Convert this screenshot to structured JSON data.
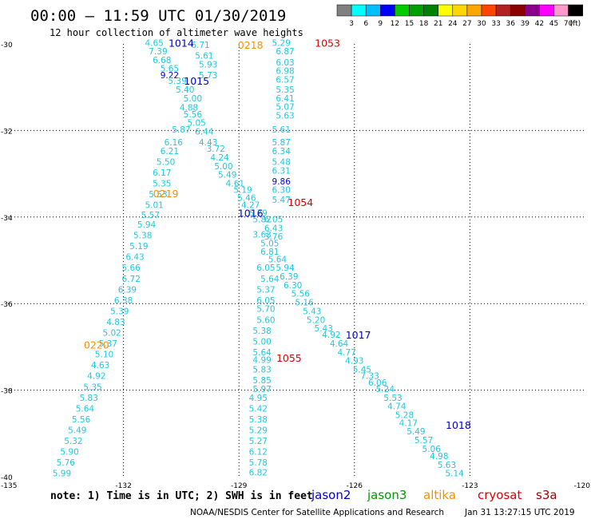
{
  "header": {
    "title": "00:00 – 11:59 UTC 01/30/2019",
    "subtitle": "12 hour collection of altimeter wave heights"
  },
  "legend": {
    "ticks": [
      "3",
      "6",
      "9",
      "12",
      "15",
      "18",
      "21",
      "24",
      "27",
      "30",
      "33",
      "36",
      "39",
      "42",
      "45",
      "70",
      "(ft)"
    ],
    "colors": [
      "#808080",
      "#00ffff",
      "#00bfff",
      "#0000ff",
      "#00cc00",
      "#00a000",
      "#008000",
      "#ffff00",
      "#ffd700",
      "#ffa500",
      "#ff4500",
      "#b22222",
      "#8b0000",
      "#8b008b",
      "#ff00ff",
      "#ff99cc",
      "#000000"
    ]
  },
  "axes": {
    "lat_labels": [
      "-30",
      "-32",
      "-34",
      "-36",
      "-38",
      "-40"
    ],
    "lon_labels": [
      "-135",
      "-132",
      "-129",
      "-126",
      "-123",
      "-120"
    ]
  },
  "footer": {
    "note": "note: 1) Time is in UTC; 2) SWH is in feet",
    "credit": "NOAA/NESDIS Center for Satellite Applications and Research",
    "generated": "Jan 31 13:27:15 UTC 2019"
  },
  "satellites": [
    {
      "name": "jason2",
      "color": "#0000cc"
    },
    {
      "name": "jason3",
      "color": "#009900"
    },
    {
      "name": "altika",
      "color": "#ff8c00"
    },
    {
      "name": "cryosat",
      "color": "#dd0000"
    },
    {
      "name": "s3a",
      "color": "#990000"
    }
  ],
  "pass_labels": [
    {
      "text": "1014",
      "lon": -130.5,
      "lat": -29.97,
      "color": "#0000cc"
    },
    {
      "text": "0218",
      "lon": -128.7,
      "lat": -30.02,
      "color": "#ff8c00"
    },
    {
      "text": "1053",
      "lon": -126.7,
      "lat": -29.97,
      "color": "#dd0000"
    },
    {
      "text": "1015",
      "lon": -130.1,
      "lat": -30.85,
      "color": "#0000cc"
    },
    {
      "text": "0219",
      "lon": -130.9,
      "lat": -33.45,
      "color": "#ff8c00"
    },
    {
      "text": "1054",
      "lon": -127.4,
      "lat": -33.65,
      "color": "#dd0000"
    },
    {
      "text": "1016",
      "lon": -128.7,
      "lat": -33.9,
      "color": "#0000cc"
    },
    {
      "text": "1017",
      "lon": -125.9,
      "lat": -36.72,
      "color": "#0000cc"
    },
    {
      "text": "0220",
      "lon": -132.7,
      "lat": -36.95,
      "color": "#ff8c00"
    },
    {
      "text": "1055",
      "lon": -127.7,
      "lat": -37.25,
      "color": "#dd0000"
    },
    {
      "text": "1018",
      "lon": -123.3,
      "lat": -38.8,
      "color": "#0000cc"
    }
  ],
  "swh_readings": [
    {
      "v": "4.65",
      "lon": -131.2,
      "lat": -29.97
    },
    {
      "v": "6.71",
      "lon": -130.0,
      "lat": -30.02
    },
    {
      "v": "5.29",
      "lon": -127.9,
      "lat": -29.97
    },
    {
      "v": "7.39",
      "lon": -131.1,
      "lat": -30.17
    },
    {
      "v": "5.61",
      "lon": -129.9,
      "lat": -30.27
    },
    {
      "v": "6.87",
      "lon": -127.8,
      "lat": -30.17
    },
    {
      "v": "6.68",
      "lon": -131.0,
      "lat": -30.37
    },
    {
      "v": "5.93",
      "lon": -129.8,
      "lat": -30.47
    },
    {
      "v": "6.03",
      "lon": -127.8,
      "lat": -30.42
    },
    {
      "v": "5.65",
      "lon": -130.8,
      "lat": -30.56
    },
    {
      "v": "9.22",
      "lon": -130.8,
      "lat": -30.72
    },
    {
      "v": "5.73",
      "lon": -129.8,
      "lat": -30.72
    },
    {
      "v": "6.98",
      "lon": -127.8,
      "lat": -30.62
    },
    {
      "v": "5.39",
      "lon": -130.6,
      "lat": -30.85
    },
    {
      "v": "6.57",
      "lon": -127.8,
      "lat": -30.82
    },
    {
      "v": "5.40",
      "lon": -130.4,
      "lat": -31.05
    },
    {
      "v": "5.35",
      "lon": -127.8,
      "lat": -31.05
    },
    {
      "v": "5.00",
      "lon": -130.2,
      "lat": -31.25
    },
    {
      "v": "6.41",
      "lon": -127.8,
      "lat": -31.25
    },
    {
      "v": "4.88",
      "lon": -130.3,
      "lat": -31.47
    },
    {
      "v": "5.07",
      "lon": -127.8,
      "lat": -31.45
    },
    {
      "v": "5.56",
      "lon": -130.2,
      "lat": -31.62
    },
    {
      "v": "5.63",
      "lon": -127.8,
      "lat": -31.65
    },
    {
      "v": "5.05",
      "lon": -130.1,
      "lat": -31.82
    },
    {
      "v": "5.87",
      "lon": -130.5,
      "lat": -31.97
    },
    {
      "v": "6.44",
      "lon": -129.9,
      "lat": -32.02
    },
    {
      "v": "5.61",
      "lon": -127.9,
      "lat": -31.97
    },
    {
      "v": "6.16",
      "lon": -130.7,
      "lat": -32.27
    },
    {
      "v": "4.43",
      "lon": -129.8,
      "lat": -32.27
    },
    {
      "v": "5.87",
      "lon": -127.9,
      "lat": -32.27
    },
    {
      "v": "6.21",
      "lon": -130.8,
      "lat": -32.47
    },
    {
      "v": "3.72",
      "lon": -129.6,
      "lat": -32.42
    },
    {
      "v": "6.34",
      "lon": -127.9,
      "lat": -32.47
    },
    {
      "v": "5.50",
      "lon": -130.9,
      "lat": -32.72
    },
    {
      "v": "4.24",
      "lon": -129.5,
      "lat": -32.62
    },
    {
      "v": "5.48",
      "lon": -127.9,
      "lat": -32.72
    },
    {
      "v": "5.00",
      "lon": -129.4,
      "lat": -32.82
    },
    {
      "v": "6.17",
      "lon": -131.0,
      "lat": -32.97
    },
    {
      "v": "5.49",
      "lon": -129.3,
      "lat": -33.02
    },
    {
      "v": "6.31",
      "lon": -127.9,
      "lat": -32.92
    },
    {
      "v": "5.35",
      "lon": -131.0,
      "lat": -33.22
    },
    {
      "v": "4.61",
      "lon": -129.1,
      "lat": -33.22
    },
    {
      "v": "9.86",
      "lon": -127.9,
      "lat": -33.17
    },
    {
      "v": "5.19",
      "lon": -128.9,
      "lat": -33.37
    },
    {
      "v": "6.30",
      "lon": -127.9,
      "lat": -33.37
    },
    {
      "v": "5.53",
      "lon": -131.1,
      "lat": -33.47
    },
    {
      "v": "5.46",
      "lon": -128.8,
      "lat": -33.55
    },
    {
      "v": "5.47",
      "lon": -127.9,
      "lat": -33.6
    },
    {
      "v": "5.01",
      "lon": -131.2,
      "lat": -33.72
    },
    {
      "v": "4.27",
      "lon": -128.7,
      "lat": -33.72
    },
    {
      "v": "5.57",
      "lon": -131.3,
      "lat": -33.95
    },
    {
      "v": "5.79",
      "lon": -128.5,
      "lat": -33.9
    },
    {
      "v": "5.82",
      "lon": -128.4,
      "lat": -34.05
    },
    {
      "v": "6.05",
      "lon": -128.1,
      "lat": -34.05
    },
    {
      "v": "5.94",
      "lon": -131.4,
      "lat": -34.17
    },
    {
      "v": "6.43",
      "lon": -128.1,
      "lat": -34.25
    },
    {
      "v": "3.63",
      "lon": -128.4,
      "lat": -34.4
    },
    {
      "v": "3.76",
      "lon": -128.1,
      "lat": -34.45
    },
    {
      "v": "5.38",
      "lon": -131.5,
      "lat": -34.42
    },
    {
      "v": "5.05",
      "lon": -128.2,
      "lat": -34.6
    },
    {
      "v": "5.19",
      "lon": -131.6,
      "lat": -34.67
    },
    {
      "v": "6.81",
      "lon": -128.2,
      "lat": -34.8
    },
    {
      "v": "6.43",
      "lon": -131.7,
      "lat": -34.92
    },
    {
      "v": "5.64",
      "lon": -128.0,
      "lat": -34.97
    },
    {
      "v": "5.66",
      "lon": -131.8,
      "lat": -35.17
    },
    {
      "v": "6.05",
      "lon": -128.3,
      "lat": -35.17
    },
    {
      "v": "5.94",
      "lon": -127.8,
      "lat": -35.17
    },
    {
      "v": "6.72",
      "lon": -131.8,
      "lat": -35.42
    },
    {
      "v": "5.64",
      "lon": -128.2,
      "lat": -35.42
    },
    {
      "v": "6.39",
      "lon": -127.7,
      "lat": -35.37
    },
    {
      "v": "6.39",
      "lon": -131.9,
      "lat": -35.67
    },
    {
      "v": "5.37",
      "lon": -128.3,
      "lat": -35.67
    },
    {
      "v": "6.30",
      "lon": -127.6,
      "lat": -35.57
    },
    {
      "v": "5.56",
      "lon": -127.4,
      "lat": -35.77
    },
    {
      "v": "6.38",
      "lon": -132.0,
      "lat": -35.92
    },
    {
      "v": "6.05",
      "lon": -128.3,
      "lat": -35.92
    },
    {
      "v": "5.16",
      "lon": -127.3,
      "lat": -35.97
    },
    {
      "v": "5.39",
      "lon": -132.1,
      "lat": -36.17
    },
    {
      "v": "5.70",
      "lon": -128.3,
      "lat": -36.12
    },
    {
      "v": "5.43",
      "lon": -127.1,
      "lat": -36.17
    },
    {
      "v": "4.83",
      "lon": -132.2,
      "lat": -36.42
    },
    {
      "v": "5.60",
      "lon": -128.3,
      "lat": -36.37
    },
    {
      "v": "5.20",
      "lon": -127.0,
      "lat": -36.37
    },
    {
      "v": "5.02",
      "lon": -132.3,
      "lat": -36.67
    },
    {
      "v": "5.38",
      "lon": -128.4,
      "lat": -36.62
    },
    {
      "v": "5.43",
      "lon": -126.8,
      "lat": -36.57
    },
    {
      "v": "4.92",
      "lon": -126.6,
      "lat": -36.72
    },
    {
      "v": "5.37",
      "lon": -132.4,
      "lat": -36.92
    },
    {
      "v": "5.00",
      "lon": -128.4,
      "lat": -36.87
    },
    {
      "v": "4.64",
      "lon": -126.4,
      "lat": -36.92
    },
    {
      "v": "5.10",
      "lon": -132.5,
      "lat": -37.17
    },
    {
      "v": "5.64",
      "lon": -128.4,
      "lat": -37.12
    },
    {
      "v": "4.77",
      "lon": -126.2,
      "lat": -37.12
    },
    {
      "v": "4.99",
      "lon": -128.4,
      "lat": -37.3
    },
    {
      "v": "4.93",
      "lon": -126.0,
      "lat": -37.32
    },
    {
      "v": "4.63",
      "lon": -132.6,
      "lat": -37.42
    },
    {
      "v": "5.83",
      "lon": -128.4,
      "lat": -37.52
    },
    {
      "v": "5.45",
      "lon": -125.8,
      "lat": -37.52
    },
    {
      "v": "4.92",
      "lon": -132.7,
      "lat": -37.67
    },
    {
      "v": "7.33",
      "lon": -125.6,
      "lat": -37.67
    },
    {
      "v": "5.85",
      "lon": -128.4,
      "lat": -37.77
    },
    {
      "v": "6.06",
      "lon": -125.4,
      "lat": -37.82
    },
    {
      "v": "5.35",
      "lon": -132.8,
      "lat": -37.92
    },
    {
      "v": "5.97",
      "lon": -128.4,
      "lat": -37.97
    },
    {
      "v": "5.24",
      "lon": -125.2,
      "lat": -37.97
    },
    {
      "v": "5.83",
      "lon": -132.9,
      "lat": -38.17
    },
    {
      "v": "4.95",
      "lon": -128.5,
      "lat": -38.17
    },
    {
      "v": "5.53",
      "lon": -125.0,
      "lat": -38.17
    },
    {
      "v": "4.74",
      "lon": -124.9,
      "lat": -38.37
    },
    {
      "v": "5.64",
      "lon": -133.0,
      "lat": -38.42
    },
    {
      "v": "5.42",
      "lon": -128.5,
      "lat": -38.42
    },
    {
      "v": "5.28",
      "lon": -124.7,
      "lat": -38.57
    },
    {
      "v": "5.56",
      "lon": -133.1,
      "lat": -38.67
    },
    {
      "v": "5.38",
      "lon": -128.5,
      "lat": -38.67
    },
    {
      "v": "4.17",
      "lon": -124.6,
      "lat": -38.75
    },
    {
      "v": "5.49",
      "lon": -133.2,
      "lat": -38.92
    },
    {
      "v": "5.29",
      "lon": -128.5,
      "lat": -38.92
    },
    {
      "v": "5.49",
      "lon": -124.4,
      "lat": -38.95
    },
    {
      "v": "5.32",
      "lon": -133.3,
      "lat": -39.17
    },
    {
      "v": "5.27",
      "lon": -128.5,
      "lat": -39.17
    },
    {
      "v": "5.57",
      "lon": -124.2,
      "lat": -39.15
    },
    {
      "v": "5.06",
      "lon": -124.0,
      "lat": -39.35
    },
    {
      "v": "5.90",
      "lon": -133.4,
      "lat": -39.42
    },
    {
      "v": "6.12",
      "lon": -128.5,
      "lat": -39.42
    },
    {
      "v": "4.98",
      "lon": -123.8,
      "lat": -39.52
    },
    {
      "v": "5.76",
      "lon": -133.5,
      "lat": -39.67
    },
    {
      "v": "5.78",
      "lon": -128.5,
      "lat": -39.67
    },
    {
      "v": "5.63",
      "lon": -123.6,
      "lat": -39.72
    },
    {
      "v": "5.99",
      "lon": -133.6,
      "lat": -39.92
    },
    {
      "v": "6.82",
      "lon": -128.5,
      "lat": -39.9
    },
    {
      "v": "5.14",
      "lon": -123.4,
      "lat": -39.92
    }
  ]
}
